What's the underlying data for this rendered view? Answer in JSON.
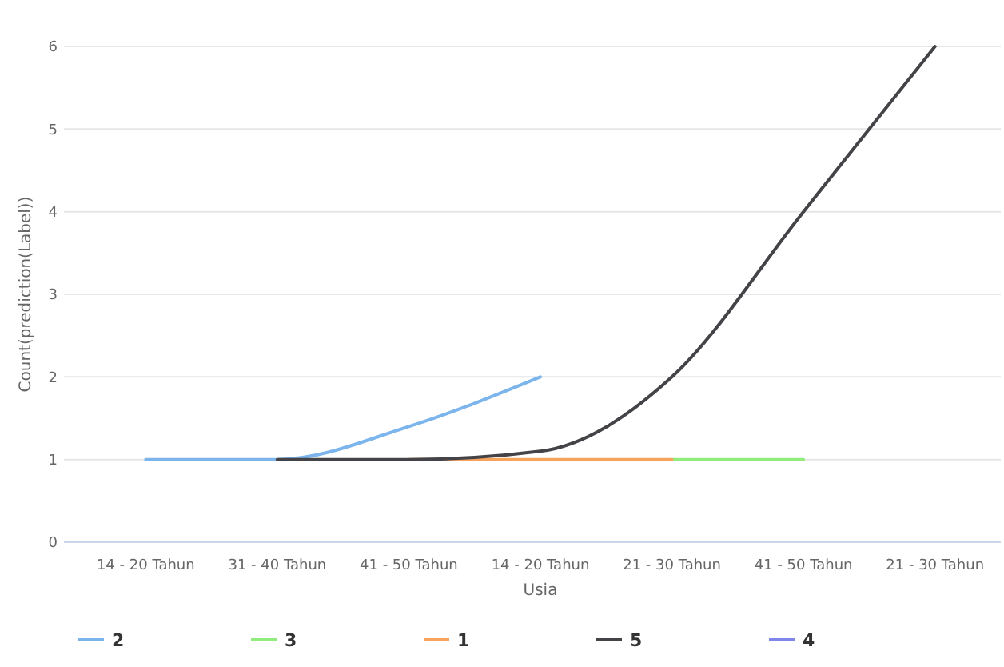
{
  "chart_data": {
    "type": "line",
    "xlabel": "Usia",
    "ylabel": "Count(prediction(Label))",
    "categories": [
      "14 - 20 Tahun",
      "31 - 40 Tahun",
      "41 - 50 Tahun",
      "14 - 20 Tahun",
      "21 - 30 Tahun",
      "41 - 50 Tahun",
      "21 - 30 Tahun"
    ],
    "series": [
      {
        "name": "2",
        "color": "#7cb5ec",
        "values": [
          1,
          1,
          1.4,
          2,
          null,
          null,
          null
        ]
      },
      {
        "name": "3",
        "color": "#90ed7d",
        "values": [
          null,
          null,
          null,
          null,
          1,
          1,
          null
        ]
      },
      {
        "name": "1",
        "color": "#f7a35c",
        "values": [
          null,
          null,
          1,
          1,
          1,
          null,
          null
        ]
      },
      {
        "name": "5",
        "color": "#434348",
        "values": [
          null,
          1,
          1,
          1.1,
          2,
          4,
          6
        ]
      },
      {
        "name": "4",
        "color": "#8085e9",
        "values": [
          null,
          null,
          null,
          null,
          null,
          null,
          null
        ]
      }
    ],
    "ylim": [
      0,
      6
    ],
    "yticks": [
      0,
      1,
      2,
      3,
      4,
      5,
      6
    ],
    "grid": "y",
    "legend": "bottom",
    "marker": "none"
  }
}
